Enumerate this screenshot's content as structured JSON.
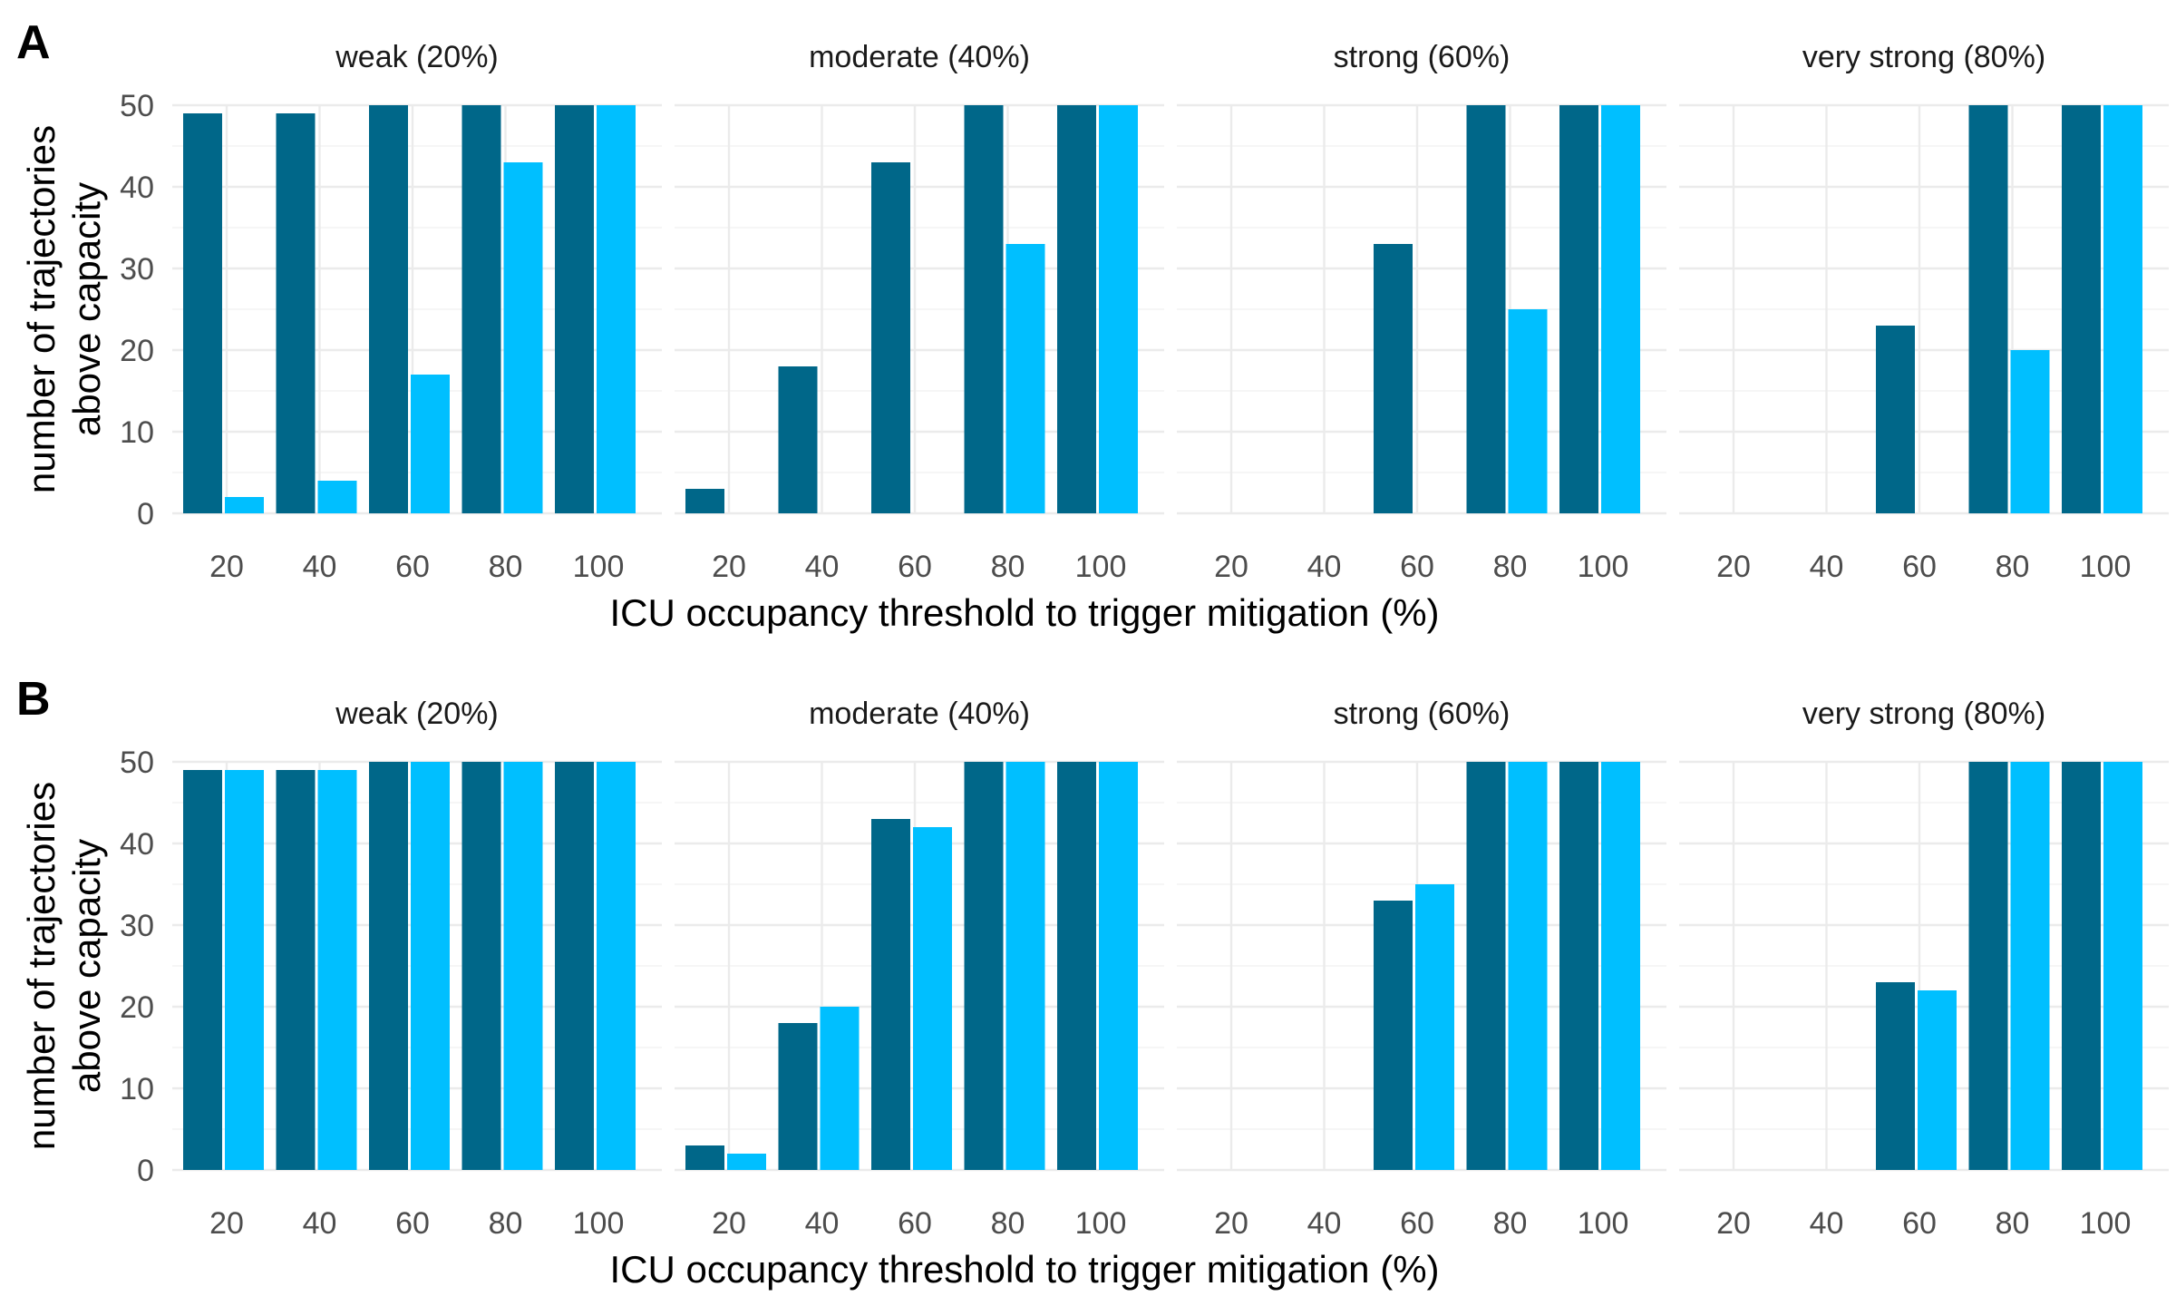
{
  "chart_data": [
    {
      "type": "bar",
      "panel_label": "A",
      "facets": [
        "weak (20%)",
        "moderate (40%)",
        "strong (60%)",
        "very strong (80%)"
      ],
      "categories": [
        "20",
        "40",
        "60",
        "80",
        "100"
      ],
      "xlabel": "ICU occupancy threshold to trigger mitigation (%)",
      "ylabel_lines": [
        "number of trajectories",
        "above capacity"
      ],
      "yticks": [
        0,
        10,
        20,
        30,
        40,
        50
      ],
      "ylim": [
        0,
        50
      ],
      "grid": true,
      "series_colors": [
        "#006789",
        "#00BFFF"
      ],
      "values": [
        [
          [
            49,
            2
          ],
          [
            49,
            4
          ],
          [
            50,
            17
          ],
          [
            50,
            43
          ],
          [
            50,
            50
          ]
        ],
        [
          [
            3,
            0
          ],
          [
            18,
            0
          ],
          [
            43,
            0
          ],
          [
            50,
            33
          ],
          [
            50,
            50
          ]
        ],
        [
          [
            0,
            0
          ],
          [
            0,
            0
          ],
          [
            33,
            0
          ],
          [
            50,
            25
          ],
          [
            50,
            50
          ]
        ],
        [
          [
            0,
            0
          ],
          [
            0,
            0
          ],
          [
            23,
            0
          ],
          [
            50,
            20
          ],
          [
            50,
            50
          ]
        ]
      ]
    },
    {
      "type": "bar",
      "panel_label": "B",
      "facets": [
        "weak (20%)",
        "moderate (40%)",
        "strong (60%)",
        "very strong (80%)"
      ],
      "categories": [
        "20",
        "40",
        "60",
        "80",
        "100"
      ],
      "xlabel": "ICU occupancy threshold to trigger mitigation (%)",
      "ylabel_lines": [
        "number of trajectories",
        "above capacity"
      ],
      "yticks": [
        0,
        10,
        20,
        30,
        40,
        50
      ],
      "ylim": [
        0,
        50
      ],
      "grid": true,
      "series_colors": [
        "#006789",
        "#00BFFF"
      ],
      "values": [
        [
          [
            49,
            49
          ],
          [
            49,
            49
          ],
          [
            50,
            50
          ],
          [
            50,
            50
          ],
          [
            50,
            50
          ]
        ],
        [
          [
            3,
            2
          ],
          [
            18,
            20
          ],
          [
            43,
            42
          ],
          [
            50,
            50
          ],
          [
            50,
            50
          ]
        ],
        [
          [
            0,
            0
          ],
          [
            0,
            0
          ],
          [
            33,
            35
          ],
          [
            50,
            50
          ],
          [
            50,
            50
          ]
        ],
        [
          [
            0,
            0
          ],
          [
            0,
            0
          ],
          [
            23,
            22
          ],
          [
            50,
            50
          ],
          [
            50,
            50
          ]
        ]
      ]
    }
  ]
}
